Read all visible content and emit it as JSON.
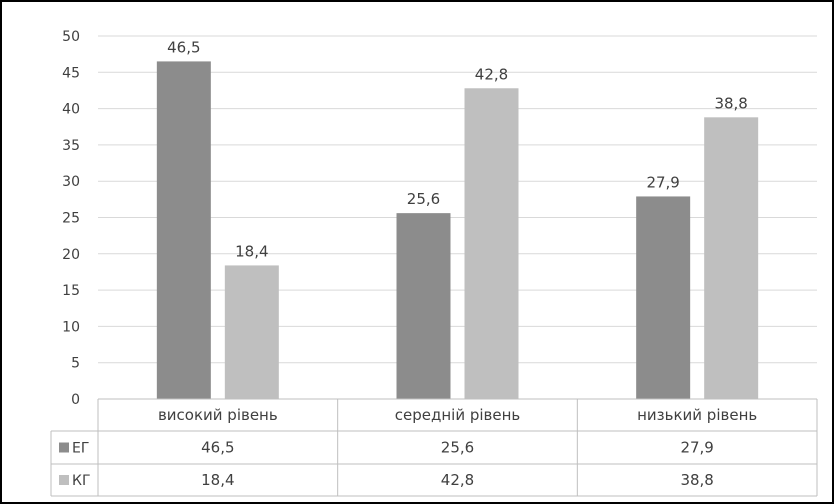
{
  "chart_data": {
    "type": "bar",
    "title": "",
    "xlabel": "",
    "ylabel": "",
    "categories": [
      "високий рівень",
      "середній рівень",
      "низький рівень"
    ],
    "series": [
      {
        "name": "ЕГ",
        "values": [
          46.5,
          25.6,
          27.9
        ],
        "color": "#8c8c8c"
      },
      {
        "name": "КГ",
        "values": [
          18.4,
          42.8,
          38.8
        ],
        "color": "#bfbfbf"
      }
    ],
    "value_labels": {
      "ЕГ": [
        "46,5",
        "25,6",
        "27,9"
      ],
      "КГ": [
        "18,4",
        "42,8",
        "38,8"
      ]
    },
    "ylim": [
      0,
      50
    ],
    "yticks": [
      0,
      5,
      10,
      15,
      20,
      25,
      30,
      35,
      40,
      45,
      50
    ],
    "grid": true,
    "legend": "data-table"
  }
}
